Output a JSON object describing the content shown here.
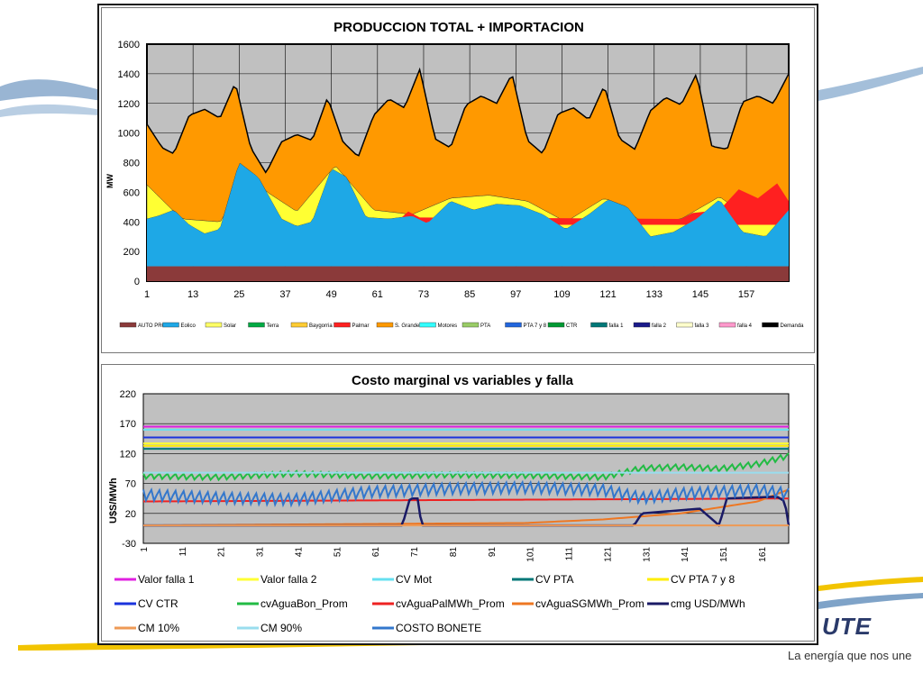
{
  "colors": {
    "accent_blue": "#2a3a6a",
    "swoosh_yellow": "#f2c400",
    "swoosh_blue": "#7fa3c8"
  },
  "brand": {
    "name": "UTE",
    "tagline": "La energía que nos une"
  },
  "chart_data": [
    {
      "type": "area",
      "title": "PRODUCCION TOTAL + IMPORTACION",
      "ylabel": "MW",
      "xlabel": "",
      "ylim": [
        0,
        1600
      ],
      "yticks": [
        0,
        200,
        400,
        600,
        800,
        1000,
        1200,
        1400,
        1600
      ],
      "xlim": [
        1,
        168
      ],
      "xticks": [
        1,
        13,
        25,
        37,
        49,
        61,
        73,
        85,
        97,
        109,
        121,
        133,
        145,
        157
      ],
      "grid": true,
      "legend_position": "bottom",
      "legend": [
        "AUTO PROD",
        "Eolico",
        "Solar",
        "Terra",
        "Baygorria",
        "Palmar",
        "S. Grande",
        "Motores",
        "PTA",
        "PTA 7 y 8",
        "CTR",
        "falla 1",
        "falla 2",
        "falla 3",
        "falla 4",
        "Demanda"
      ],
      "legend_colors": [
        "#8b3a3a",
        "#1ea8e6",
        "#ffff66",
        "#00aa44",
        "#ffcc33",
        "#ff2020",
        "#ff9900",
        "#33ffff",
        "#99cc66",
        "#2266dd",
        "#009933",
        "#007777",
        "#1a1a8a",
        "#ffffcc",
        "#ff99cc",
        "#000000"
      ],
      "series": [
        {
          "name": "AUTO PROD",
          "x": [
            1,
            168
          ],
          "values": [
            100,
            100
          ]
        },
        {
          "name": "Eolico",
          "x": [
            1,
            4,
            8,
            12,
            16,
            20,
            25,
            30,
            36,
            40,
            44,
            49,
            53,
            58,
            64,
            70,
            74,
            80,
            86,
            92,
            98,
            104,
            110,
            116,
            121,
            126,
            132,
            138,
            144,
            150,
            156,
            162,
            168
          ],
          "values": [
            420,
            440,
            480,
            380,
            320,
            350,
            800,
            700,
            420,
            370,
            400,
            760,
            700,
            430,
            420,
            440,
            390,
            540,
            480,
            520,
            510,
            450,
            350,
            450,
            550,
            500,
            300,
            330,
            420,
            550,
            330,
            300,
            480
          ]
        },
        {
          "name": "Solar",
          "x": [
            1,
            10,
            20,
            30,
            40,
            50,
            60,
            70,
            80,
            90,
            100,
            110,
            120,
            130,
            140,
            150,
            160,
            168
          ],
          "values": [
            650,
            420,
            400,
            640,
            470,
            780,
            480,
            450,
            560,
            580,
            540,
            400,
            560,
            400,
            420,
            570,
            380,
            480
          ]
        },
        {
          "name": "Palmar",
          "x": [
            66,
            69,
            72,
            140,
            143,
            150,
            155,
            160,
            165,
            168
          ],
          "values": [
            400,
            470,
            430,
            420,
            460,
            480,
            620,
            560,
            660,
            540
          ]
        },
        {
          "name": "Demanda",
          "x": [
            1,
            5,
            8,
            12,
            16,
            20,
            24,
            28,
            32,
            36,
            40,
            44,
            48,
            52,
            56,
            60,
            64,
            68,
            72,
            76,
            80,
            84,
            88,
            92,
            96,
            100,
            104,
            108,
            112,
            116,
            120,
            124,
            128,
            132,
            136,
            140,
            144,
            148,
            152,
            156,
            160,
            164,
            168
          ],
          "values": [
            1060,
            900,
            860,
            1120,
            1160,
            1100,
            1340,
            900,
            730,
            940,
            990,
            950,
            1240,
            940,
            840,
            1120,
            1230,
            1170,
            1430,
            960,
            900,
            1190,
            1250,
            1200,
            1400,
            950,
            860,
            1130,
            1170,
            1090,
            1320,
            960,
            890,
            1150,
            1240,
            1190,
            1400,
            910,
            890,
            1210,
            1250,
            1200,
            1400
          ]
        }
      ]
    },
    {
      "type": "line",
      "title": "Costo marginal  vs variables y falla",
      "ylabel": "U$S/MWh",
      "xlabel": "",
      "ylim": [
        -30,
        220
      ],
      "yticks": [
        -30,
        20,
        70,
        120,
        170,
        220
      ],
      "xlim": [
        1,
        168
      ],
      "xticks": [
        1,
        11,
        21,
        31,
        41,
        51,
        61,
        71,
        81,
        91,
        101,
        111,
        121,
        131,
        141,
        151,
        161
      ],
      "grid": true,
      "legend_position": "bottom",
      "series": [
        {
          "name": "Valor falla 1",
          "color": "#e020e0",
          "x": [
            1,
            168
          ],
          "values": [
            165,
            165
          ]
        },
        {
          "name": "Valor falla 2",
          "color": "#ffff33",
          "x": [
            1,
            168
          ],
          "values": [
            137,
            137
          ]
        },
        {
          "name": "CV Mot",
          "color": "#66e0f0",
          "x": [
            1,
            168
          ],
          "values": [
            160,
            160
          ]
        },
        {
          "name": "CV PTA",
          "color": "#007777",
          "x": [
            1,
            168
          ],
          "values": [
            128,
            128
          ]
        },
        {
          "name": "CV PTA 7 y 8",
          "color": "#ffee00",
          "x": [
            1,
            168
          ],
          "values": [
            133,
            133
          ]
        },
        {
          "name": "CV CTR",
          "color": "#1a33dd",
          "x": [
            1,
            168
          ],
          "values": [
            147,
            147
          ]
        },
        {
          "name": "cvAguaBon_Prom",
          "color": "#22bb44",
          "x": [
            1,
            20,
            40,
            60,
            80,
            100,
            120,
            130,
            140,
            150,
            160,
            168
          ],
          "values": [
            82,
            80,
            86,
            82,
            84,
            83,
            80,
            95,
            97,
            94,
            102,
            116
          ]
        },
        {
          "name": "cvAguaPalMWh_Prom",
          "color": "#ee2222",
          "x": [
            1,
            168
          ],
          "values": [
            40,
            45
          ]
        },
        {
          "name": "cvAguaSGMWh_Prom",
          "color": "#ee7722",
          "x": [
            1,
            100,
            120,
            140,
            160,
            168
          ],
          "values": [
            0,
            4,
            10,
            20,
            40,
            60
          ]
        },
        {
          "name": "cmg USD/MWh",
          "color": "#1a1a66",
          "x": [
            1,
            68,
            70,
            72,
            73,
            128,
            130,
            145,
            150,
            152,
            165,
            167,
            168
          ],
          "values": [
            0,
            0,
            45,
            45,
            0,
            0,
            20,
            28,
            0,
            45,
            48,
            40,
            0
          ]
        },
        {
          "name": "CM 10%",
          "color": "#ee9955",
          "x": [
            1,
            168
          ],
          "values": [
            0,
            0
          ]
        },
        {
          "name": "CM 90%",
          "color": "#99ddee",
          "x": [
            1,
            168
          ],
          "values": [
            88,
            88
          ]
        },
        {
          "name": "COSTO BONETE",
          "color": "#3377cc",
          "x": [
            1,
            20,
            40,
            60,
            80,
            100,
            120,
            130,
            140,
            150,
            160,
            168
          ],
          "values": [
            50,
            45,
            42,
            55,
            60,
            62,
            58,
            45,
            52,
            55,
            58,
            52
          ]
        }
      ]
    }
  ]
}
